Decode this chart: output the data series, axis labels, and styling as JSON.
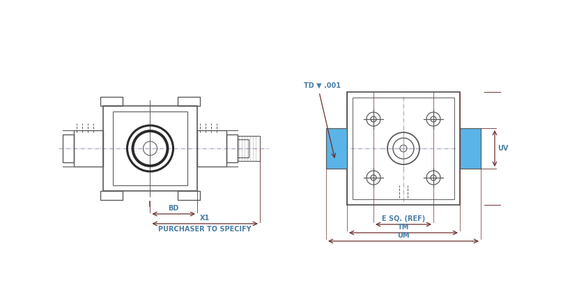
{
  "bg_color": "#ffffff",
  "line_color": "#5a5a5a",
  "dim_color": "#6b2d2d",
  "label_color": "#4a7fa5",
  "blue_fill": "#5ab4e8",
  "dim_labels": {
    "BD": "BD",
    "X1": "X1",
    "purchaser": "PURCHASER TO SPECIFY",
    "TD": "TD ▼ .001",
    "UV": "UV",
    "ESQ": "E SQ. (REF)",
    "TM": "TM",
    "UM": "UM"
  }
}
